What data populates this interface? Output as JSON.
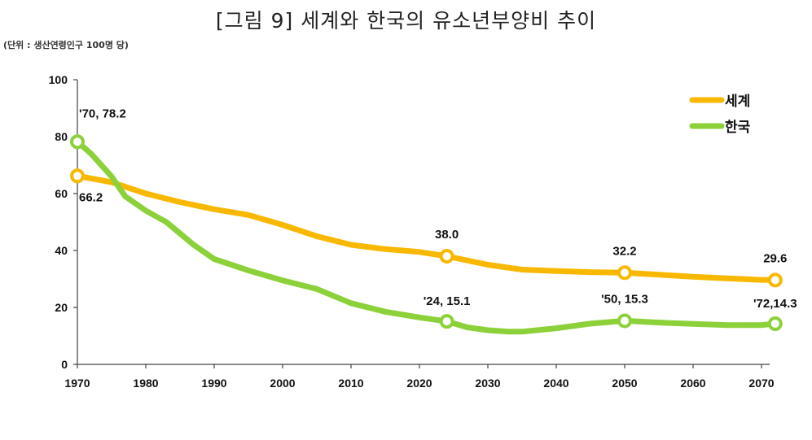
{
  "title": "[그림 9] 세계와 한국의 유소년부양비 추이",
  "unit_note": "(단위 : 생산연령인구 100명 당)",
  "colors": {
    "world": "#f9b800",
    "korea": "#8dd13a"
  },
  "chart_data": {
    "type": "line",
    "title": "[그림 9] 세계와 한국의 유소년부양비 추이",
    "xlabel": "",
    "ylabel": "",
    "xlim": [
      1970,
      2072
    ],
    "ylim": [
      0,
      100
    ],
    "x_ticks": [
      1970,
      1980,
      1990,
      2000,
      2010,
      2020,
      2030,
      2040,
      2050,
      2060,
      2070
    ],
    "y_ticks": [
      0,
      20,
      40,
      60,
      80,
      100
    ],
    "legend_position": "top-right",
    "series": [
      {
        "name": "세계",
        "color": "#f9b800",
        "points": [
          [
            1970,
            66.2
          ],
          [
            1975,
            64
          ],
          [
            1980,
            60
          ],
          [
            1985,
            57
          ],
          [
            1990,
            54.5
          ],
          [
            1995,
            52.5
          ],
          [
            2000,
            49
          ],
          [
            2005,
            45
          ],
          [
            2010,
            42
          ],
          [
            2015,
            40.5
          ],
          [
            2020,
            39.5
          ],
          [
            2024,
            38.0
          ],
          [
            2030,
            35
          ],
          [
            2035,
            33.3
          ],
          [
            2040,
            32.8
          ],
          [
            2045,
            32.4
          ],
          [
            2050,
            32.2
          ],
          [
            2055,
            31.5
          ],
          [
            2060,
            30.8
          ],
          [
            2065,
            30.2
          ],
          [
            2070,
            29.7
          ],
          [
            2072,
            29.6
          ]
        ],
        "markers": [
          [
            1970,
            66.2
          ],
          [
            2024,
            38.0
          ],
          [
            2050,
            32.2
          ],
          [
            2072,
            29.6
          ]
        ]
      },
      {
        "name": "한국",
        "color": "#8dd13a",
        "points": [
          [
            1970,
            78.2
          ],
          [
            1972,
            74
          ],
          [
            1975,
            66
          ],
          [
            1977,
            59
          ],
          [
            1980,
            54
          ],
          [
            1983,
            50
          ],
          [
            1987,
            42
          ],
          [
            1990,
            37
          ],
          [
            1995,
            33
          ],
          [
            2000,
            29.5
          ],
          [
            2005,
            26.5
          ],
          [
            2010,
            21.5
          ],
          [
            2015,
            18.5
          ],
          [
            2020,
            16.5
          ],
          [
            2024,
            15.1
          ],
          [
            2027,
            13
          ],
          [
            2030,
            12
          ],
          [
            2033,
            11.5
          ],
          [
            2035,
            11.5
          ],
          [
            2040,
            12.7
          ],
          [
            2045,
            14.3
          ],
          [
            2050,
            15.3
          ],
          [
            2055,
            14.7
          ],
          [
            2060,
            14.2
          ],
          [
            2065,
            13.8
          ],
          [
            2070,
            13.8
          ],
          [
            2072,
            14.3
          ]
        ],
        "markers": [
          [
            1970,
            78.2
          ],
          [
            2024,
            15.1
          ],
          [
            2050,
            15.3
          ],
          [
            2072,
            14.3
          ]
        ]
      }
    ],
    "annotations": [
      {
        "id": "korea-1970",
        "text": "'70, 78.2"
      },
      {
        "id": "world-1970",
        "text": "66.2"
      },
      {
        "id": "world-2024",
        "text": "38.0"
      },
      {
        "id": "korea-2024",
        "text": "'24, 15.1"
      },
      {
        "id": "world-2050",
        "text": "32.2"
      },
      {
        "id": "korea-2050",
        "text": "'50, 15.3"
      },
      {
        "id": "world-2072",
        "text": "29.6"
      },
      {
        "id": "korea-2072",
        "text": "'72,14.3"
      }
    ]
  }
}
